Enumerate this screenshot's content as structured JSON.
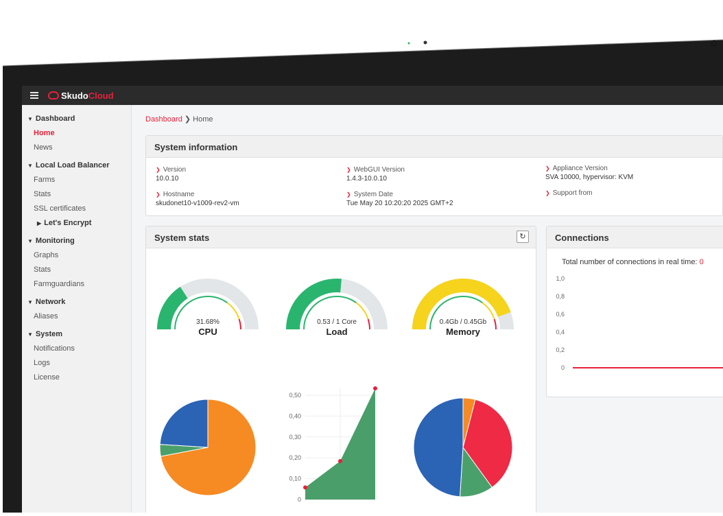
{
  "app": {
    "name_part1": "Skudo",
    "name_part2": "Cloud"
  },
  "breadcrumb": {
    "link": "Dashboard",
    "current": "Home"
  },
  "sidebar": {
    "sections": [
      {
        "title": "Dashboard",
        "items": [
          {
            "label": "Home",
            "active": true
          },
          {
            "label": "News"
          }
        ]
      },
      {
        "title": "Local Load Balancer",
        "items": [
          {
            "label": "Farms"
          },
          {
            "label": "Stats"
          },
          {
            "label": "SSL certificates"
          },
          {
            "label": "Let's Encrypt",
            "sub": true
          }
        ]
      },
      {
        "title": "Monitoring",
        "items": [
          {
            "label": "Graphs"
          },
          {
            "label": "Stats"
          },
          {
            "label": "Farmguardians"
          }
        ]
      },
      {
        "title": "Network",
        "items": [
          {
            "label": "Aliases"
          }
        ]
      },
      {
        "title": "System",
        "items": [
          {
            "label": "Notifications"
          },
          {
            "label": "Logs"
          },
          {
            "label": "License"
          }
        ]
      }
    ]
  },
  "system_info": {
    "title": "System information",
    "version_label": "Version",
    "version_value": "10.0.10",
    "hostname_label": "Hostname",
    "hostname_value": "skudonet10-v1009-rev2-vm",
    "webgui_label": "WebGUI Version",
    "webgui_value": "1.4.3-10.0.10",
    "date_label": "System Date",
    "date_value": "Tue May 20 10:20:20 2025 GMT+2",
    "appliance_label": "Appliance Version",
    "appliance_value": "SVA 10000, hypervisor: KVM",
    "support_label": "Support from"
  },
  "system_stats": {
    "title": "System stats",
    "refresh_icon": "↻",
    "gauges": [
      {
        "value_text": "31.68%",
        "label": "CPU",
        "fraction": 0.3168,
        "color": "#2ab56f"
      },
      {
        "value_text": "0.53 / 1 Core",
        "label": "Load",
        "fraction": 0.53,
        "color": "#2ab56f"
      },
      {
        "value_text": "0.4Gb / 0.45Gb",
        "label": "Memory",
        "fraction": 0.89,
        "color": "#f6d31c"
      }
    ]
  },
  "connections": {
    "title": "Connections",
    "label": "Total number of connections in real time:",
    "count": "0",
    "line_color": "#e8203a"
  },
  "chart_data": [
    {
      "type": "line",
      "y_ticks": [
        "1,0",
        "0,8",
        "0,6",
        "0,4",
        "0,2",
        "0"
      ],
      "ylim": [
        0,
        1
      ],
      "series": [
        {
          "values": [
            0,
            0
          ]
        }
      ]
    },
    {
      "type": "area",
      "y_ticks": [
        "0,50",
        "0,40",
        "0,30",
        "0,20",
        "0,10",
        "0"
      ],
      "ylim": [
        0,
        0.55
      ],
      "series": [
        {
          "values": [
            0.06,
            0.19,
            0.55
          ]
        }
      ]
    },
    {
      "type": "pie",
      "series": [
        {
          "values": [
            72,
            4,
            24
          ]
        }
      ],
      "colors": [
        "#f68a23",
        "#4aa06a",
        "#2b63b5"
      ]
    },
    {
      "type": "pie",
      "series": [
        {
          "values": [
            4,
            36,
            11,
            49
          ]
        }
      ],
      "colors": [
        "#f68a23",
        "#ee2a45",
        "#4aa06a",
        "#2b63b5"
      ]
    }
  ]
}
